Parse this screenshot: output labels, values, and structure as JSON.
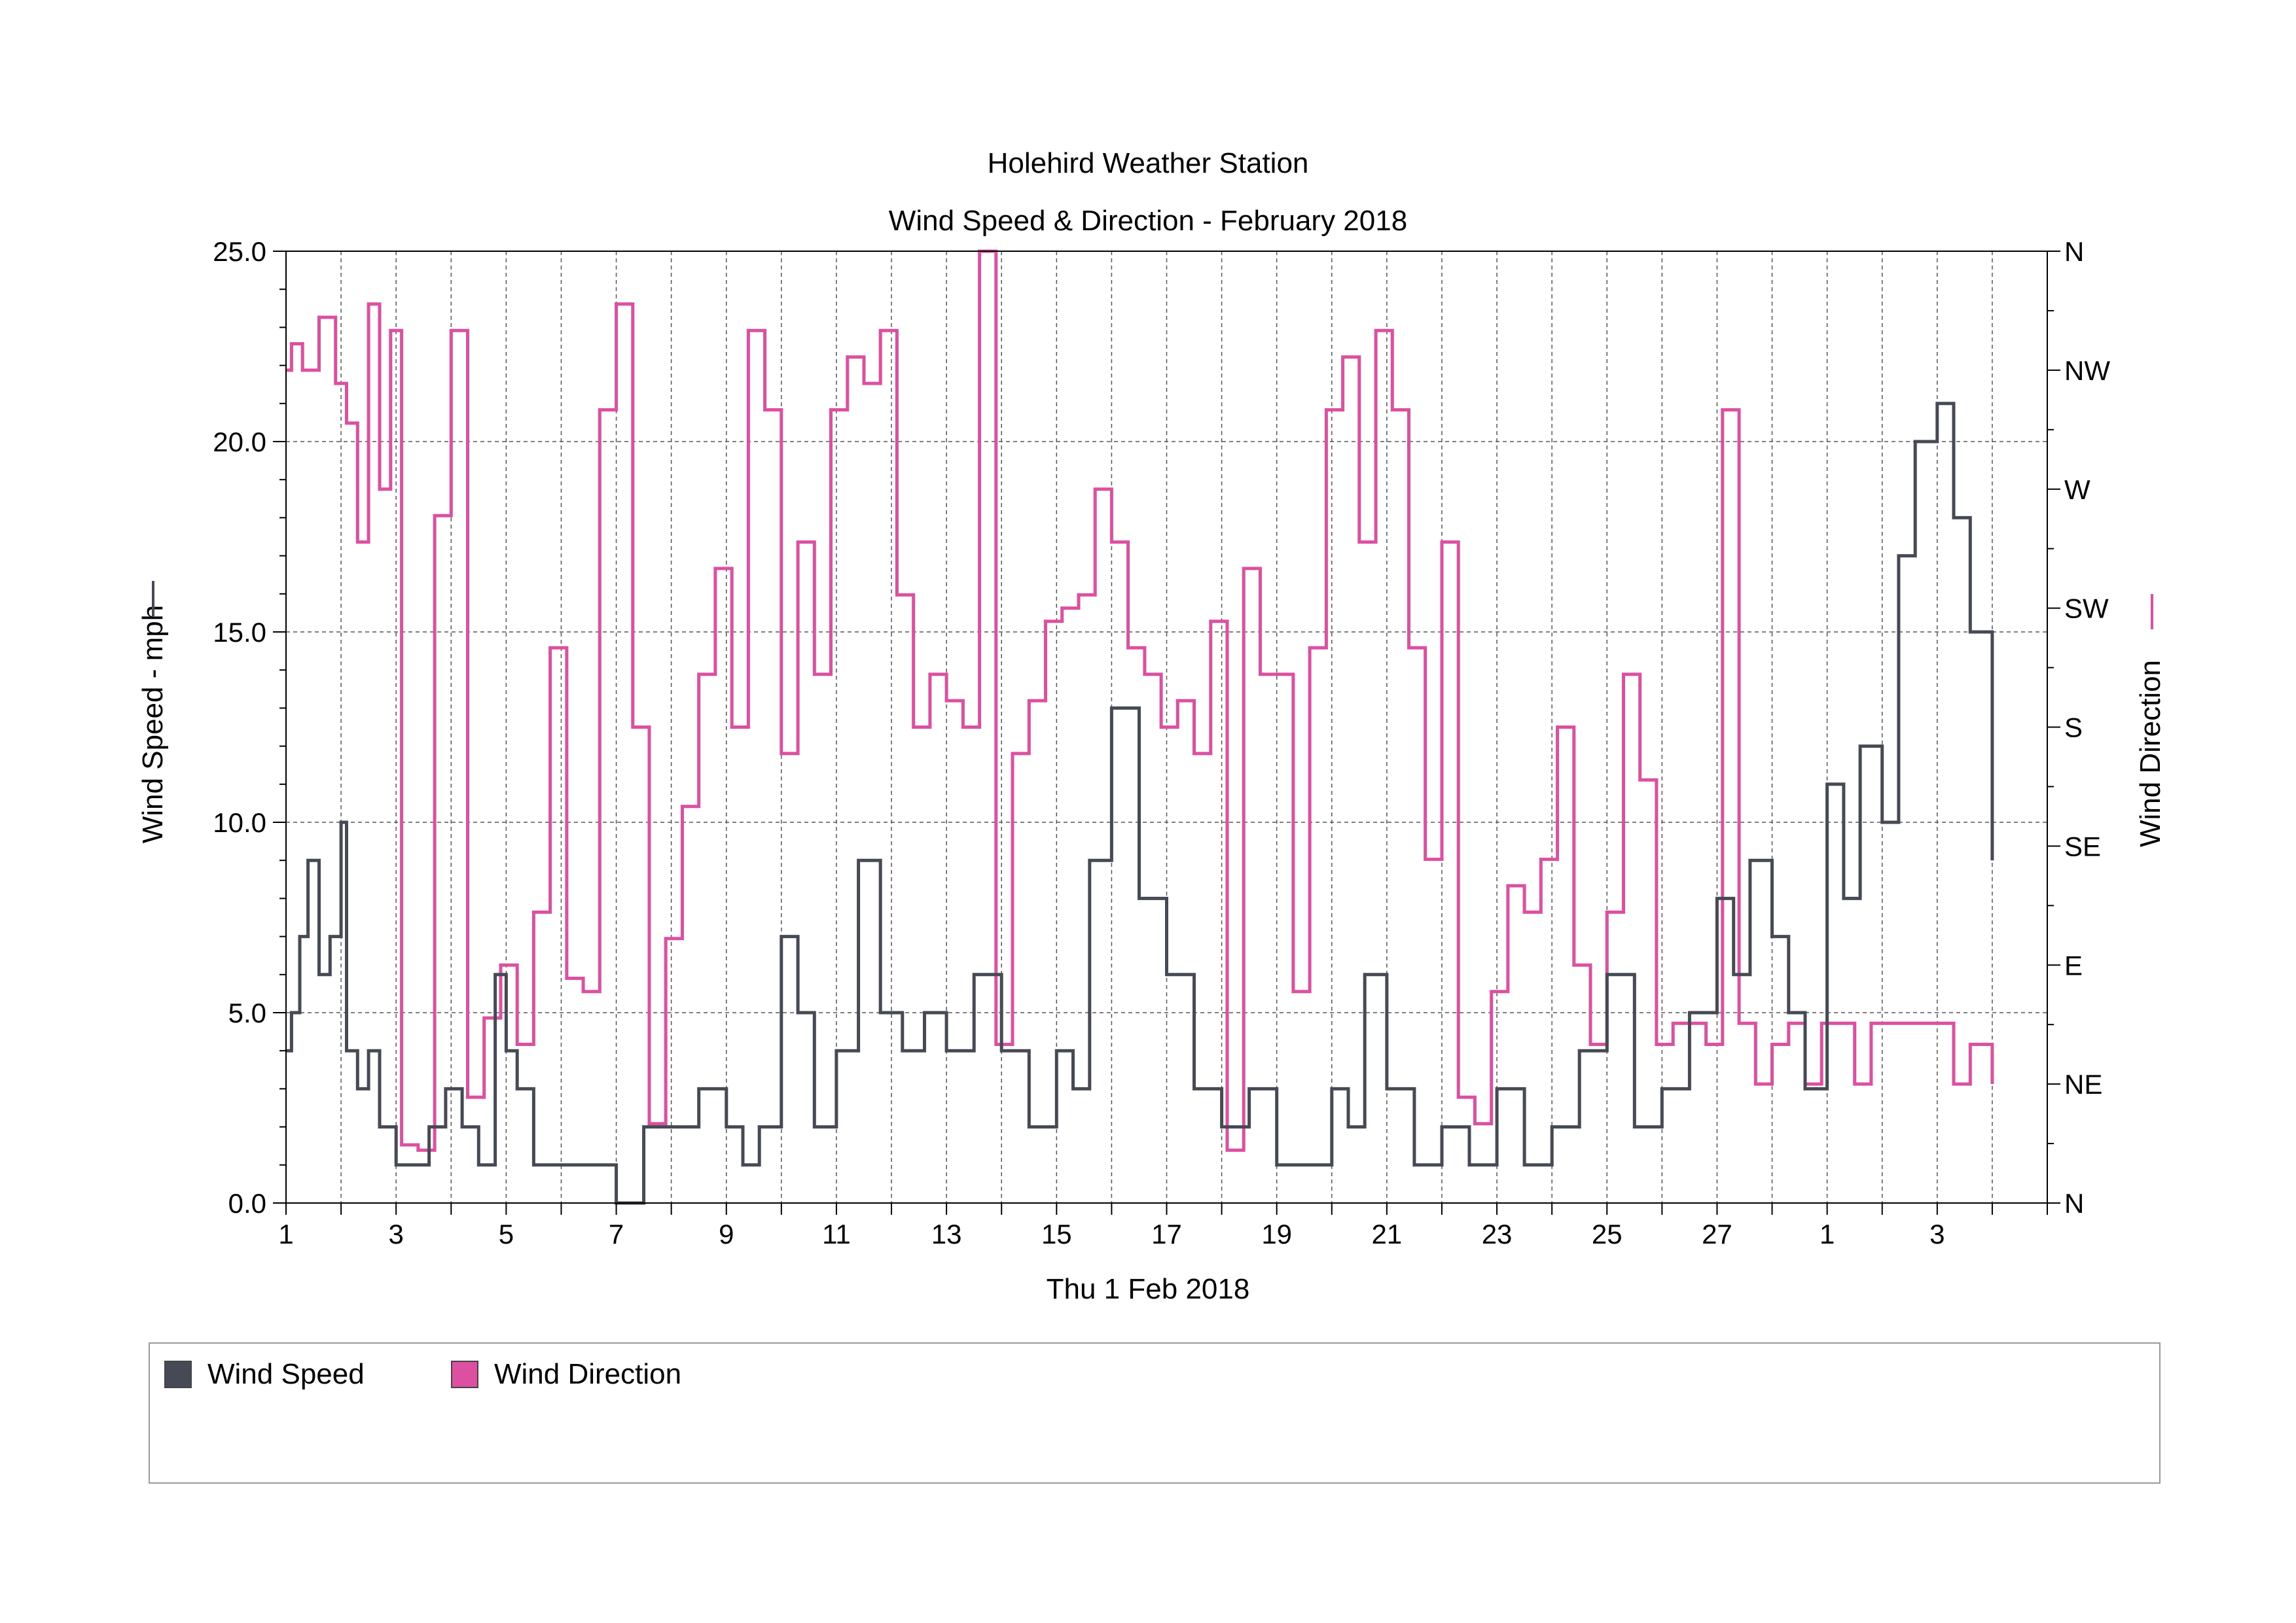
{
  "chart_data": {
    "type": "line",
    "title": "Holehird Weather Station",
    "subtitle": "Wind Speed & Direction - February 2018",
    "xlabel": "Thu 1 Feb 2018",
    "ylabel_left": "Wind Speed - mph",
    "ylabel_right": "Wind Direction",
    "x_range_days": [
      1,
      33
    ],
    "x_tick_labels": [
      {
        "day": 1,
        "label": "1"
      },
      {
        "day": 3,
        "label": "3"
      },
      {
        "day": 5,
        "label": "5"
      },
      {
        "day": 7,
        "label": "7"
      },
      {
        "day": 9,
        "label": "9"
      },
      {
        "day": 11,
        "label": "11"
      },
      {
        "day": 13,
        "label": "13"
      },
      {
        "day": 15,
        "label": "15"
      },
      {
        "day": 17,
        "label": "17"
      },
      {
        "day": 19,
        "label": "19"
      },
      {
        "day": 21,
        "label": "21"
      },
      {
        "day": 23,
        "label": "23"
      },
      {
        "day": 25,
        "label": "25"
      },
      {
        "day": 27,
        "label": "27"
      },
      {
        "day": 29,
        "label": "1"
      },
      {
        "day": 31,
        "label": "3"
      }
    ],
    "y_left": {
      "min": 0,
      "max": 25,
      "ticks": [
        "0.0",
        "5.0",
        "10.0",
        "15.0",
        "20.0",
        "25.0"
      ]
    },
    "y_right": {
      "min": 0,
      "max": 360,
      "ticks": [
        "N",
        "NE",
        "E",
        "SE",
        "S",
        "SW",
        "W",
        "NW",
        "N"
      ]
    },
    "grid": true,
    "legend_position": "bottom",
    "series": [
      {
        "name": "Wind Speed",
        "axis": "left",
        "color": "#464a54",
        "x": [
          1,
          1.1,
          1.25,
          1.4,
          1.6,
          1.8,
          2.0,
          2.1,
          2.3,
          2.5,
          2.7,
          3.0,
          3.3,
          3.6,
          3.9,
          4.2,
          4.5,
          4.8,
          5.0,
          5.2,
          5.5,
          6.0,
          6.5,
          7.0,
          7.5,
          8.0,
          8.5,
          9.0,
          9.3,
          9.6,
          10.0,
          10.3,
          10.6,
          11.0,
          11.4,
          11.8,
          12.2,
          12.6,
          13.0,
          13.5,
          14.0,
          14.5,
          15.0,
          15.3,
          15.6,
          16.0,
          16.5,
          17.0,
          17.5,
          18.0,
          18.5,
          19.0,
          19.5,
          20.0,
          20.3,
          20.6,
          21.0,
          21.5,
          22.0,
          22.5,
          23.0,
          23.5,
          24.0,
          24.5,
          25.0,
          25.5,
          26.0,
          26.5,
          27.0,
          27.3,
          27.6,
          28.0,
          28.3,
          28.6,
          29.0,
          29.3,
          29.6,
          30.0,
          30.3,
          30.6,
          31.0,
          31.3,
          31.6,
          32.0
        ],
        "y": [
          4,
          5,
          7,
          9,
          6,
          7,
          10,
          4,
          3,
          4,
          2,
          1,
          1,
          2,
          3,
          2,
          1,
          6,
          4,
          3,
          1,
          1,
          1,
          0,
          2,
          2,
          3,
          2,
          1,
          2,
          7,
          5,
          2,
          4,
          9,
          5,
          4,
          5,
          4,
          6,
          4,
          2,
          4,
          3,
          9,
          13,
          8,
          6,
          3,
          2,
          3,
          1,
          1,
          3,
          2,
          6,
          3,
          1,
          2,
          1,
          3,
          1,
          2,
          4,
          6,
          2,
          3,
          5,
          8,
          6,
          9,
          7,
          5,
          3,
          11,
          8,
          12,
          10,
          17,
          20,
          21,
          18,
          15,
          9
        ]
      },
      {
        "name": "Wind Direction",
        "axis": "right",
        "color": "#dd4fa0",
        "x": [
          1,
          1.1,
          1.3,
          1.6,
          1.9,
          2.1,
          2.3,
          2.5,
          2.7,
          2.9,
          3.1,
          3.4,
          3.7,
          4.0,
          4.3,
          4.6,
          4.9,
          5.2,
          5.5,
          5.8,
          6.1,
          6.4,
          6.7,
          7.0,
          7.3,
          7.6,
          7.9,
          8.2,
          8.5,
          8.8,
          9.1,
          9.4,
          9.7,
          10.0,
          10.3,
          10.6,
          10.9,
          11.2,
          11.5,
          11.8,
          12.1,
          12.4,
          12.7,
          13.0,
          13.3,
          13.6,
          13.9,
          14.2,
          14.5,
          14.8,
          15.1,
          15.4,
          15.7,
          16.0,
          16.3,
          16.6,
          16.9,
          17.2,
          17.5,
          17.8,
          18.1,
          18.4,
          18.7,
          19.0,
          19.3,
          19.6,
          19.9,
          20.2,
          20.5,
          20.8,
          21.1,
          21.4,
          21.7,
          22.0,
          22.3,
          22.6,
          22.9,
          23.2,
          23.5,
          23.8,
          24.1,
          24.4,
          24.7,
          25.0,
          25.3,
          25.6,
          25.9,
          26.2,
          26.5,
          26.8,
          27.1,
          27.4,
          27.7,
          28.0,
          28.3,
          28.6,
          28.9,
          29.2,
          29.5,
          29.8,
          30.1,
          30.4,
          30.7,
          31.0,
          31.3,
          31.6,
          32.0
        ],
        "y": [
          315,
          325,
          315,
          335,
          310,
          295,
          250,
          340,
          270,
          330,
          22,
          20,
          260,
          330,
          40,
          70,
          90,
          60,
          110,
          210,
          85,
          80,
          300,
          340,
          180,
          30,
          100,
          150,
          200,
          240,
          180,
          330,
          300,
          170,
          250,
          200,
          300,
          320,
          310,
          330,
          230,
          180,
          200,
          190,
          180,
          360,
          60,
          170,
          190,
          220,
          225,
          230,
          270,
          250,
          210,
          200,
          180,
          190,
          170,
          220,
          20,
          240,
          200,
          200,
          80,
          210,
          300,
          320,
          250,
          330,
          300,
          210,
          130,
          250,
          40,
          30,
          80,
          120,
          110,
          130,
          180,
          90,
          60,
          110,
          200,
          160,
          60,
          68,
          68,
          60,
          300,
          68,
          45,
          60,
          68,
          45,
          68,
          68,
          45,
          68,
          68,
          68,
          68,
          68,
          45,
          60,
          45
        ]
      }
    ]
  },
  "legend": {
    "items": [
      {
        "name": "Wind Speed",
        "color": "#464a54"
      },
      {
        "name": "Wind Direction",
        "color": "#dd4fa0"
      }
    ]
  }
}
